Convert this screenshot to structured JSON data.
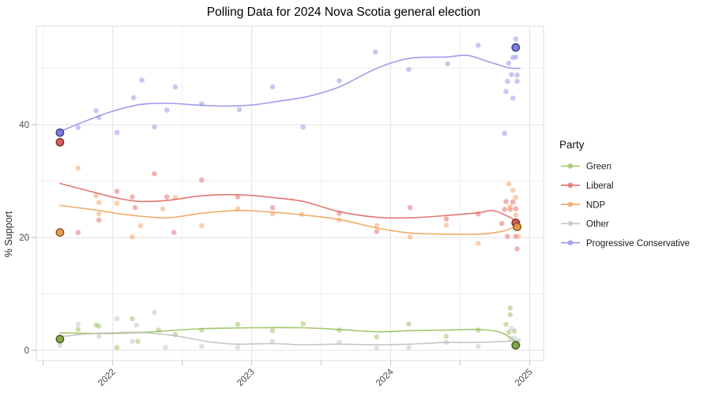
{
  "title": "Polling Data for 2024 Nova Scotia general election",
  "y_axis": {
    "label": "% Support"
  },
  "legend": {
    "title": "Party",
    "items": [
      {
        "label": "Green"
      },
      {
        "label": "Liberal"
      },
      {
        "label": "NDP"
      },
      {
        "label": "Other"
      },
      {
        "label": "Progressive Conservative"
      }
    ]
  },
  "chart_data": {
    "type": "scatter",
    "title": "Polling Data for 2024 Nova Scotia general election",
    "xlabel": "",
    "ylabel": "% Support",
    "x_range": [
      2021.45,
      2025.1
    ],
    "y_range": [
      -1.8,
      57.5
    ],
    "x_major_ticks": [
      2022,
      2023,
      2024,
      2025
    ],
    "x_minor_ticks": [
      2021.5,
      2022.5,
      2023.5,
      2024.5
    ],
    "y_major_ticks": [
      0,
      20,
      40
    ],
    "y_minor_ticks": [
      10,
      30,
      50
    ],
    "grid": true,
    "legend_position": "right",
    "colors": {
      "grid_major": "#e3e3e3",
      "grid_minor": "#efefef",
      "panel_border": "#dcdcdc",
      "axis_tick": "#bdbdbd"
    },
    "series": [
      {
        "name": "Green",
        "color_point": "#a2c46c",
        "color_line": "#93bd55",
        "color_strong": "#7ba238",
        "points": [
          [
            2021.75,
            3.7
          ],
          [
            2021.88,
            4.5
          ],
          [
            2021.9,
            4.3
          ],
          [
            2022.03,
            0.5
          ],
          [
            2022.14,
            5.6
          ],
          [
            2022.18,
            1.6
          ],
          [
            2022.33,
            3.6
          ],
          [
            2022.45,
            2.8
          ],
          [
            2022.64,
            3.6
          ],
          [
            2022.9,
            4.6
          ],
          [
            2023.15,
            3.5
          ],
          [
            2023.37,
            4.7
          ],
          [
            2023.63,
            3.6
          ],
          [
            2023.9,
            2.4
          ],
          [
            2024.13,
            4.7
          ],
          [
            2024.4,
            2.5
          ],
          [
            2024.63,
            3.6
          ],
          [
            2024.83,
            4.6
          ],
          [
            2024.85,
            3.2
          ],
          [
            2024.86,
            7.5
          ],
          [
            2024.86,
            6.3
          ],
          [
            2024.89,
            3.4
          ]
        ],
        "election_results": [
          [
            2021.62,
            2.0
          ],
          [
            2024.9,
            0.9
          ]
        ],
        "trend": [
          [
            2021.62,
            3.1
          ],
          [
            2022.0,
            3.0
          ],
          [
            2022.3,
            3.3
          ],
          [
            2022.6,
            3.8
          ],
          [
            2023.0,
            4.0
          ],
          [
            2023.37,
            4.0
          ],
          [
            2023.63,
            3.7
          ],
          [
            2023.9,
            3.3
          ],
          [
            2024.14,
            3.5
          ],
          [
            2024.4,
            3.6
          ],
          [
            2024.63,
            3.7
          ],
          [
            2024.8,
            3.1
          ],
          [
            2024.93,
            1.0
          ]
        ]
      },
      {
        "name": "Liberal",
        "color_point": "#e57373",
        "color_line": "#dc5f5a",
        "color_strong": "#da5050",
        "points": [
          [
            2021.75,
            20.9
          ],
          [
            2021.9,
            23.1
          ],
          [
            2022.03,
            28.2
          ],
          [
            2022.14,
            27.2
          ],
          [
            2022.16,
            25.3
          ],
          [
            2022.3,
            31.3
          ],
          [
            2022.39,
            27.2
          ],
          [
            2022.44,
            20.9
          ],
          [
            2022.64,
            30.2
          ],
          [
            2022.9,
            27.2
          ],
          [
            2023.15,
            25.3
          ],
          [
            2023.63,
            24.3
          ],
          [
            2023.9,
            21.1
          ],
          [
            2024.14,
            25.3
          ],
          [
            2024.4,
            23.3
          ],
          [
            2024.63,
            24.2
          ],
          [
            2024.8,
            22.5
          ],
          [
            2024.82,
            25.0
          ],
          [
            2024.83,
            26.4
          ],
          [
            2024.84,
            20.2
          ],
          [
            2024.86,
            25.0
          ],
          [
            2024.88,
            26.3
          ],
          [
            2024.9,
            25.1
          ],
          [
            2024.9,
            20.2
          ],
          [
            2024.91,
            18.0
          ]
        ],
        "election_results": [
          [
            2021.62,
            36.9
          ],
          [
            2024.9,
            22.6
          ]
        ],
        "trend": [
          [
            2021.62,
            29.6
          ],
          [
            2021.9,
            27.8
          ],
          [
            2022.05,
            26.9
          ],
          [
            2022.2,
            26.4
          ],
          [
            2022.4,
            26.6
          ],
          [
            2022.64,
            27.4
          ],
          [
            2022.9,
            27.6
          ],
          [
            2023.15,
            27.1
          ],
          [
            2023.37,
            26.4
          ],
          [
            2023.63,
            24.6
          ],
          [
            2023.9,
            23.6
          ],
          [
            2024.14,
            23.5
          ],
          [
            2024.4,
            23.9
          ],
          [
            2024.63,
            24.4
          ],
          [
            2024.75,
            24.7
          ],
          [
            2024.93,
            22.7
          ]
        ]
      },
      {
        "name": "NDP",
        "color_point": "#f3a96e",
        "color_line": "#ef9c4f",
        "color_strong": "#e9953f",
        "points": [
          [
            2021.75,
            32.3
          ],
          [
            2021.88,
            27.4
          ],
          [
            2021.9,
            26.2
          ],
          [
            2021.9,
            24.2
          ],
          [
            2022.03,
            26.1
          ],
          [
            2022.14,
            20.1
          ],
          [
            2022.2,
            22.1
          ],
          [
            2022.36,
            25.1
          ],
          [
            2022.45,
            27.1
          ],
          [
            2022.64,
            22.1
          ],
          [
            2022.9,
            25.1
          ],
          [
            2023.15,
            24.2
          ],
          [
            2023.36,
            24.1
          ],
          [
            2023.63,
            23.1
          ],
          [
            2023.9,
            22.1
          ],
          [
            2024.14,
            20.1
          ],
          [
            2024.4,
            22.2
          ],
          [
            2024.63,
            19.0
          ],
          [
            2024.85,
            29.5
          ],
          [
            2024.86,
            25.5
          ],
          [
            2024.88,
            28.4
          ],
          [
            2024.9,
            27.1
          ],
          [
            2024.9,
            24.0
          ],
          [
            2024.92,
            20.2
          ]
        ],
        "election_results": [
          [
            2021.62,
            20.9
          ],
          [
            2024.91,
            21.9
          ]
        ],
        "trend": [
          [
            2021.62,
            25.7
          ],
          [
            2021.9,
            24.8
          ],
          [
            2022.05,
            24.2
          ],
          [
            2022.2,
            23.8
          ],
          [
            2022.4,
            23.5
          ],
          [
            2022.64,
            24.3
          ],
          [
            2022.9,
            24.8
          ],
          [
            2023.15,
            24.5
          ],
          [
            2023.37,
            24.0
          ],
          [
            2023.63,
            23.2
          ],
          [
            2023.9,
            21.7
          ],
          [
            2024.14,
            20.8
          ],
          [
            2024.4,
            20.6
          ],
          [
            2024.63,
            20.6
          ],
          [
            2024.8,
            21.1
          ],
          [
            2024.93,
            22.3
          ]
        ]
      },
      {
        "name": "Other",
        "color_point": "#c9c9c9",
        "color_line": "#bcbcbc",
        "color_strong": "#a9a9a9",
        "points": [
          [
            2021.62,
            0.9
          ],
          [
            2021.75,
            4.6
          ],
          [
            2021.9,
            2.5
          ],
          [
            2022.03,
            5.6
          ],
          [
            2022.14,
            1.6
          ],
          [
            2022.17,
            4.5
          ],
          [
            2022.3,
            6.7
          ],
          [
            2022.38,
            0.5
          ],
          [
            2022.64,
            0.7
          ],
          [
            2022.9,
            0.5
          ],
          [
            2023.15,
            1.6
          ],
          [
            2023.63,
            1.4
          ],
          [
            2023.9,
            0.4
          ],
          [
            2024.13,
            0.5
          ],
          [
            2024.4,
            1.4
          ],
          [
            2024.63,
            0.7
          ],
          [
            2024.86,
            2.1
          ],
          [
            2024.87,
            3.9
          ],
          [
            2024.89,
            2.2
          ],
          [
            2024.92,
            1.8
          ]
        ],
        "election_results": [],
        "trend": [
          [
            2021.62,
            2.4
          ],
          [
            2021.8,
            2.9
          ],
          [
            2022.0,
            3.1
          ],
          [
            2022.15,
            3.2
          ],
          [
            2022.3,
            3.0
          ],
          [
            2022.5,
            2.4
          ],
          [
            2022.7,
            1.5
          ],
          [
            2022.9,
            1.1
          ],
          [
            2023.15,
            1.2
          ],
          [
            2023.37,
            1.0
          ],
          [
            2023.63,
            1.1
          ],
          [
            2023.9,
            1.0
          ],
          [
            2024.14,
            1.1
          ],
          [
            2024.4,
            1.4
          ],
          [
            2024.63,
            1.4
          ],
          [
            2024.93,
            1.7
          ]
        ]
      },
      {
        "name": "Progressive Conservative",
        "color_point": "#9b9bec",
        "color_line": "#8d8de6",
        "color_strong": "#7272e2",
        "points": [
          [
            2021.75,
            39.5
          ],
          [
            2021.88,
            42.5
          ],
          [
            2021.9,
            41.3
          ],
          [
            2022.03,
            38.6
          ],
          [
            2022.15,
            44.8
          ],
          [
            2022.21,
            47.9
          ],
          [
            2022.3,
            39.6
          ],
          [
            2022.39,
            42.6
          ],
          [
            2022.45,
            46.7
          ],
          [
            2022.64,
            43.7
          ],
          [
            2022.91,
            42.7
          ],
          [
            2023.15,
            46.7
          ],
          [
            2023.37,
            39.6
          ],
          [
            2023.63,
            47.8
          ],
          [
            2023.89,
            52.9
          ],
          [
            2024.13,
            49.8
          ],
          [
            2024.41,
            50.8
          ],
          [
            2024.63,
            54.1
          ],
          [
            2024.82,
            38.5
          ],
          [
            2024.83,
            45.9
          ],
          [
            2024.84,
            47.7
          ],
          [
            2024.85,
            50.9
          ],
          [
            2024.87,
            48.9
          ],
          [
            2024.88,
            44.7
          ],
          [
            2024.88,
            51.9
          ],
          [
            2024.9,
            55.2
          ],
          [
            2024.9,
            52.0
          ],
          [
            2024.91,
            47.7
          ],
          [
            2024.91,
            48.8
          ]
        ],
        "election_results": [
          [
            2021.62,
            38.6
          ],
          [
            2024.9,
            53.7
          ]
        ],
        "trend": [
          [
            2021.62,
            38.8
          ],
          [
            2021.8,
            40.6
          ],
          [
            2022.0,
            42.4
          ],
          [
            2022.2,
            43.6
          ],
          [
            2022.4,
            43.8
          ],
          [
            2022.6,
            43.5
          ],
          [
            2022.8,
            43.3
          ],
          [
            2023.0,
            43.5
          ],
          [
            2023.2,
            44.2
          ],
          [
            2023.4,
            45.0
          ],
          [
            2023.63,
            46.7
          ],
          [
            2023.9,
            50.0
          ],
          [
            2024.14,
            51.8
          ],
          [
            2024.4,
            52.0
          ],
          [
            2024.55,
            52.3
          ],
          [
            2024.7,
            51.2
          ],
          [
            2024.85,
            50.1
          ],
          [
            2024.93,
            50.0
          ]
        ]
      }
    ]
  }
}
